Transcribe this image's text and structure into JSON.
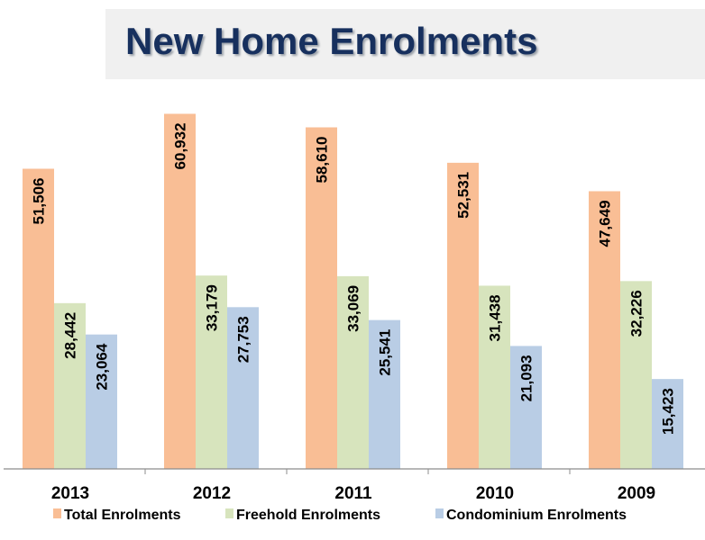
{
  "chart_data": {
    "type": "bar",
    "title": "New Home Enrolments",
    "categories": [
      "2013",
      "2012",
      "2011",
      "2010",
      "2009"
    ],
    "series": [
      {
        "name": "Total Enrolments",
        "color": "#f9be95",
        "values": [
          51506,
          60932,
          58610,
          52531,
          47649
        ],
        "labels": [
          "51,506",
          "60,932",
          "58,610",
          "52,531",
          "47,649"
        ]
      },
      {
        "name": "Freehold Enrolments",
        "color": "#d7e4bd",
        "values": [
          28442,
          33179,
          33069,
          31438,
          32226
        ],
        "labels": [
          "28,442",
          "33,179",
          "33,069",
          "31,438",
          "32,226"
        ]
      },
      {
        "name": "Condominium Enrolments",
        "color": "#b9cde5",
        "values": [
          23064,
          27753,
          25541,
          21093,
          15423
        ],
        "labels": [
          "23,064",
          "27,753",
          "25,541",
          "21,093",
          "15,423"
        ]
      }
    ],
    "xlabel": "",
    "ylabel": "",
    "ylim": [
      0,
      80000
    ],
    "grid": false,
    "legend": "bottom"
  }
}
